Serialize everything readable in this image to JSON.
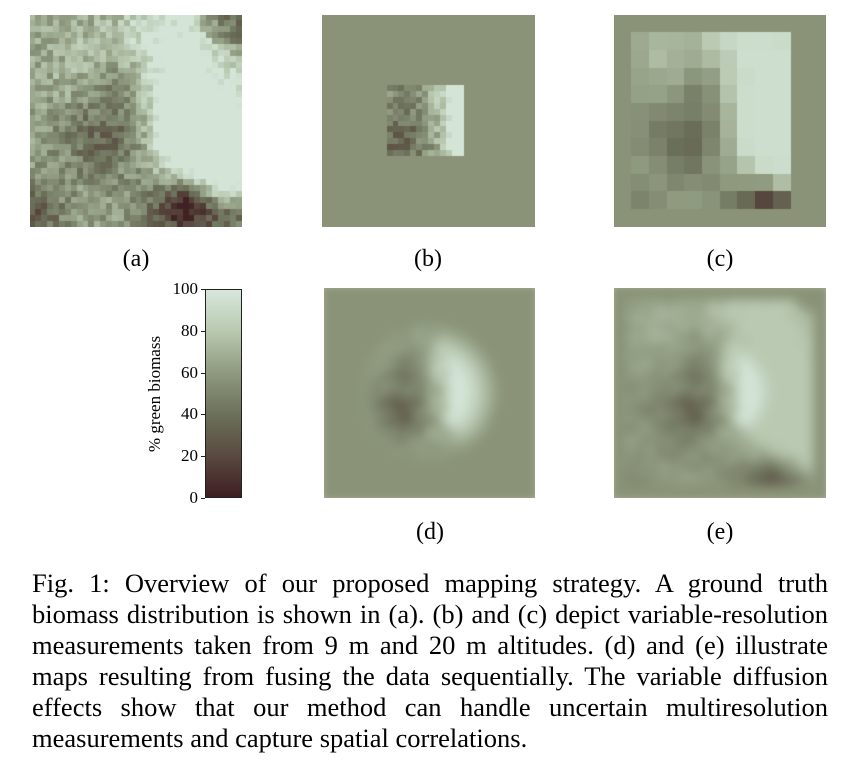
{
  "figure": {
    "panels": [
      {
        "id": "a",
        "label": "(a)"
      },
      {
        "id": "b",
        "label": "(b)"
      },
      {
        "id": "c",
        "label": "(c)"
      },
      {
        "id": "d",
        "label": "(d)"
      },
      {
        "id": "e",
        "label": "(e)"
      }
    ],
    "colorbar": {
      "axis_label": "% green biomass",
      "ticks": [
        "0",
        "20",
        "40",
        "60",
        "80",
        "100"
      ],
      "colors": [
        "#3e1e21",
        "#5a4a40",
        "#6b705a",
        "#8f9a7f",
        "#b8c8b0",
        "#d7e8dc"
      ]
    },
    "caption": "Fig. 1: Overview of our proposed mapping strategy. A ground truth biomass distribution is shown in (a). (b) and (c) depict variable-resolution measurements taken from 9 m and 20 m altitudes. (d) and (e) illustrate maps resulting from fusing the data sequentially. The variable diffusion effects show that our method can handle uncertain multiresolution measurements and capture spatial correlations.",
    "background_prior_color": "#8a9377"
  }
}
